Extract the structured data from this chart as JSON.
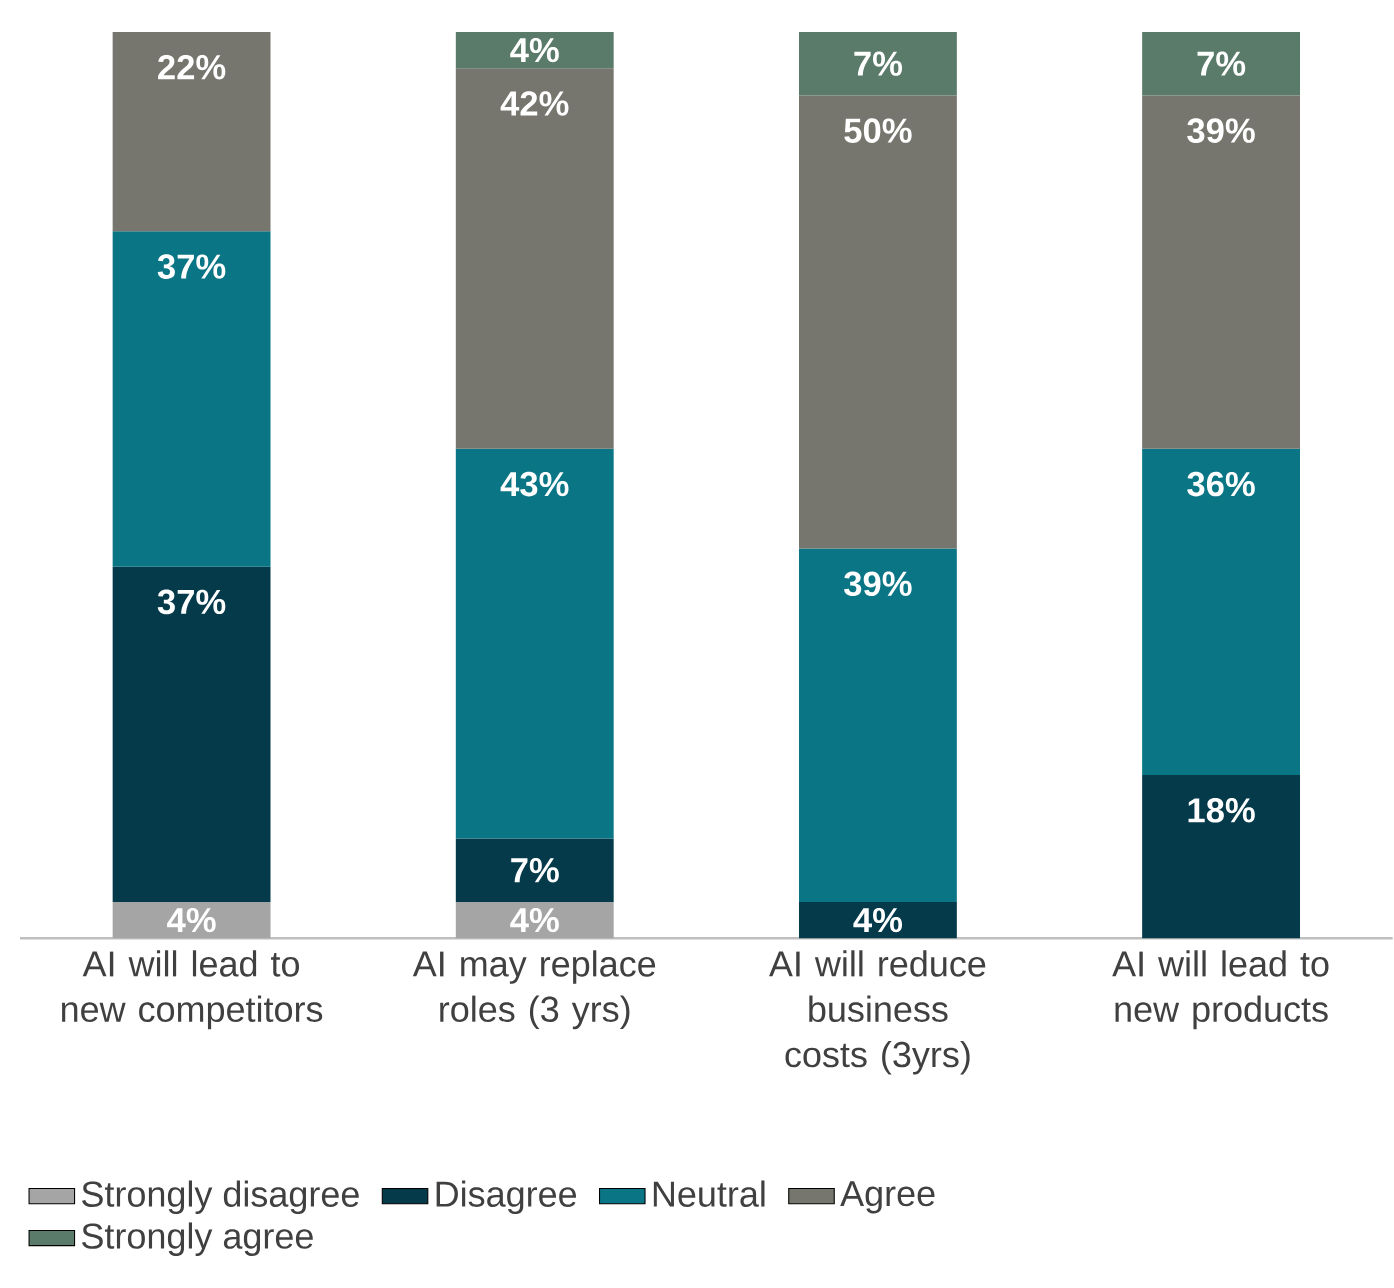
{
  "chart_data": {
    "type": "bar",
    "stacked": true,
    "categories": [
      "AI will lead to new competitors",
      "AI may replace roles (3 yrs)",
      "AI will reduce business costs (3yrs)",
      "AI will lead to new products"
    ],
    "series": [
      {
        "name": "Strongly disagree",
        "color": "#a5a5a5",
        "values": [
          4,
          4,
          null,
          null
        ],
        "value_labels": [
          "4%",
          "4%",
          null,
          null
        ]
      },
      {
        "name": "Disagree",
        "color": "#043a4a",
        "values": [
          37,
          7,
          4,
          18
        ],
        "value_labels": [
          "37%",
          "7%",
          "4%",
          "18%"
        ]
      },
      {
        "name": "Neutral",
        "color": "#0a7585",
        "values": [
          37,
          43,
          39,
          36
        ],
        "value_labels": [
          "37%",
          "43%",
          "39%",
          "36%"
        ]
      },
      {
        "name": "Agree",
        "color": "#76766f",
        "values": [
          22,
          42,
          50,
          39
        ],
        "value_labels": [
          "22%",
          "42%",
          "50%",
          "39%"
        ]
      },
      {
        "name": "Strongly agree",
        "color": "#5a7a6a",
        "values": [
          null,
          4,
          7,
          7
        ],
        "value_labels": [
          null,
          "4%",
          "7%",
          "7%"
        ]
      }
    ],
    "legend": "bottom left"
  }
}
